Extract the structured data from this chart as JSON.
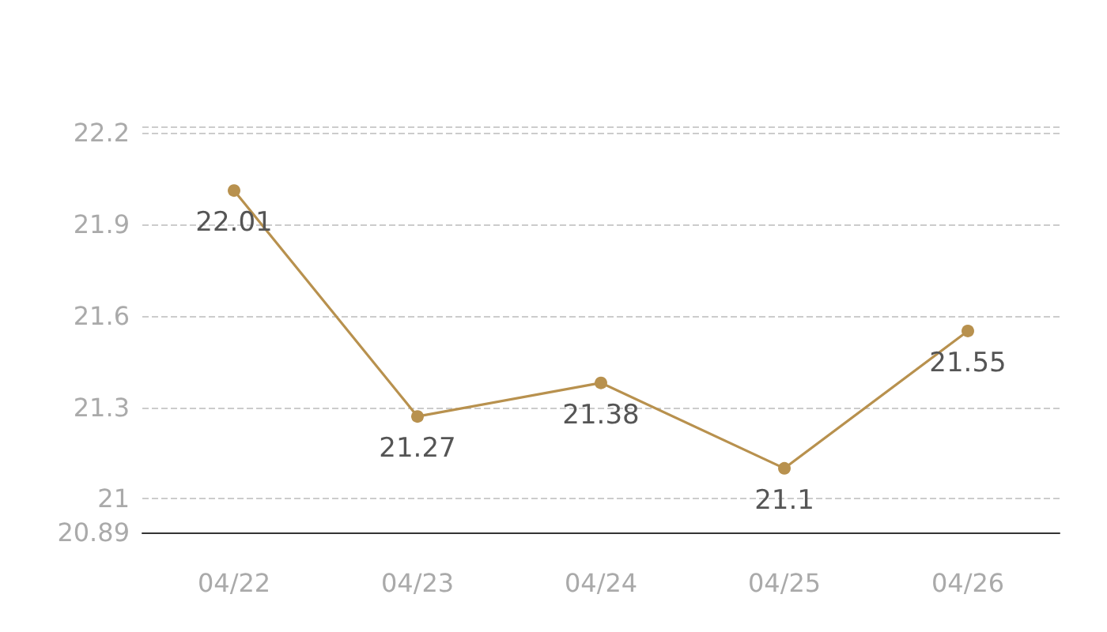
{
  "chart_data": {
    "type": "line",
    "categories": [
      "04/22",
      "04/23",
      "04/24",
      "04/25",
      "04/26"
    ],
    "series": [
      {
        "color": "#b8914e",
        "values": [
          22.01,
          21.27,
          21.38,
          21.1,
          21.55
        ]
      }
    ],
    "ylim": [
      20.89,
      22.22
    ],
    "yticks": [
      20.89,
      21,
      21.3,
      21.6,
      21.9,
      22.2,
      {
        "value": 22.22,
        "label": null
      }
    ],
    "grid": "y",
    "marker": "circle",
    "line_style": "solid",
    "data_labels": true
  }
}
